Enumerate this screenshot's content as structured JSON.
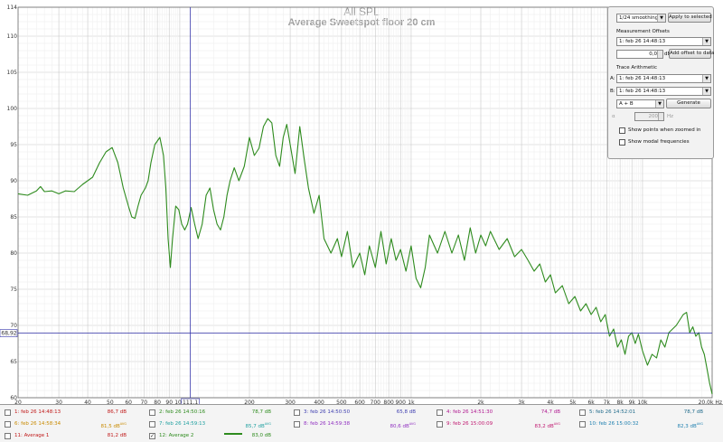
{
  "chart_title": "All SPL",
  "chart_subtitle": "Average Sweetspot floor 20 cm",
  "cursor": {
    "freq_readout": "111,1",
    "level_readout": "68,92"
  },
  "panel": {
    "smoothing": "1/24 smoothing",
    "apply_selected": "Apply to selected",
    "offsets_label": "Measurement Offsets",
    "offset_measurement": "1: feb 26 14:48:13",
    "offset_value": "0,0",
    "offset_unit": "dB",
    "add_offset": "Add offset to data",
    "arith_label": "Trace Arithmetic",
    "a_label": "A:",
    "a_value": "1: feb 26 14:48:13",
    "b_label": "B:",
    "b_value": "1: feb 26 14:48:13",
    "operation": "A + B",
    "generate": "Generate",
    "unit_hz": "Hz",
    "alpha_label": "α",
    "freq_value": "200",
    "show_points": "Show points when zoomed in",
    "show_modal": "Show modal frequencies"
  },
  "legend": [
    {
      "name": "1: feb 26 14:48:13",
      "value": "86,7 dB",
      "avg": "",
      "color": "#c01818",
      "checked": false
    },
    {
      "name": "2: feb 26 14:50:16",
      "value": "78,7 dB",
      "avg": "",
      "color": "#2e8b1e",
      "checked": false
    },
    {
      "name": "3: feb 26 14:50:50",
      "value": "65,8 dB",
      "avg": "",
      "color": "#4040b0",
      "checked": false
    },
    {
      "name": "4: feb 26 14:51:30",
      "value": "74,7 dB",
      "avg": "",
      "color": "#b01890",
      "checked": false
    },
    {
      "name": "5: feb 26 14:52:01",
      "value": "78,7 dB",
      "avg": "",
      "color": "#1f6a8a",
      "checked": false
    },
    {
      "name": "6: feb 26 14:58:34",
      "value": "81,5 dB",
      "avg": "AVG",
      "color": "#c88a00",
      "checked": false
    },
    {
      "name": "7: feb 26 14:59:13",
      "value": "85,7 dB",
      "avg": "AVG",
      "color": "#20a0a0",
      "checked": false
    },
    {
      "name": "8: feb 26 14:59:38",
      "value": "80,6 dB",
      "avg": "AVG",
      "color": "#9030c0",
      "checked": false
    },
    {
      "name": "9: feb 26 15:00:09",
      "value": "83,2 dB",
      "avg": "AVG",
      "color": "#c01870",
      "checked": false
    },
    {
      "name": "10: feb 26 15:00:32",
      "value": "82,3 dB",
      "avg": "AVG",
      "color": "#2080b0",
      "checked": false
    },
    {
      "name": "11: Average 1",
      "value": "81,2 dB",
      "avg": "",
      "color": "#c01818",
      "checked": false
    },
    {
      "name": "12: Average 2",
      "value": "83,0 dB",
      "avg": "",
      "color": "#2e8b1e",
      "checked": true
    }
  ],
  "chart_data": {
    "type": "line",
    "title": "All SPL",
    "subtitle": "Average Sweetspot floor 20 cm",
    "xlabel": "Hz",
    "x_scale": "log",
    "xlim": [
      20,
      20000
    ],
    "ylim": [
      60,
      114
    ],
    "y_ticks": [
      60,
      65,
      70,
      75,
      80,
      85,
      90,
      95,
      100,
      105,
      110,
      114
    ],
    "x_ticks": [
      {
        "v": 20,
        "t": "20"
      },
      {
        "v": 30,
        "t": "30"
      },
      {
        "v": 40,
        "t": "40"
      },
      {
        "v": 50,
        "t": "50"
      },
      {
        "v": 60,
        "t": "60"
      },
      {
        "v": 70,
        "t": "70"
      },
      {
        "v": 80,
        "t": "80"
      },
      {
        "v": 90,
        "t": "90"
      },
      {
        "v": 100,
        "t": "100"
      },
      {
        "v": 200,
        "t": "200"
      },
      {
        "v": 300,
        "t": "300"
      },
      {
        "v": 400,
        "t": "400"
      },
      {
        "v": 500,
        "t": "500"
      },
      {
        "v": 600,
        "t": "600"
      },
      {
        "v": 700,
        "t": "700"
      },
      {
        "v": 800,
        "t": "800"
      },
      {
        "v": 900,
        "t": "900"
      },
      {
        "v": 1000,
        "t": "1k"
      },
      {
        "v": 2000,
        "t": "2k"
      },
      {
        "v": 3000,
        "t": "3k"
      },
      {
        "v": 4000,
        "t": "4k"
      },
      {
        "v": 5000,
        "t": "5k"
      },
      {
        "v": 6000,
        "t": "6k"
      },
      {
        "v": 7000,
        "t": "7k"
      },
      {
        "v": 8000,
        "t": "8k"
      },
      {
        "v": 9000,
        "t": "9k"
      },
      {
        "v": 10000,
        "t": "10k"
      },
      {
        "v": 20000,
        "t": "20.0k Hz"
      }
    ],
    "grid": true,
    "cursor": {
      "x": 111.1,
      "y": 68.92
    },
    "series": [
      {
        "name": "12: Average 2",
        "color": "#2e8b1e",
        "points": [
          [
            20,
            88.2
          ],
          [
            22,
            88.0
          ],
          [
            24,
            88.6
          ],
          [
            25,
            89.2
          ],
          [
            26,
            88.5
          ],
          [
            28,
            88.6
          ],
          [
            30,
            88.2
          ],
          [
            32,
            88.6
          ],
          [
            35,
            88.5
          ],
          [
            38,
            89.5
          ],
          [
            42,
            90.5
          ],
          [
            45,
            92.5
          ],
          [
            48,
            94.0
          ],
          [
            51,
            94.6
          ],
          [
            54,
            92.5
          ],
          [
            57,
            89.0
          ],
          [
            60,
            86.5
          ],
          [
            62,
            85.0
          ],
          [
            64,
            84.8
          ],
          [
            66,
            86.5
          ],
          [
            68,
            88.0
          ],
          [
            71,
            89.0
          ],
          [
            73,
            90.0
          ],
          [
            75,
            92.5
          ],
          [
            78,
            95.0
          ],
          [
            82,
            96.0
          ],
          [
            85,
            93.5
          ],
          [
            87,
            89.0
          ],
          [
            89,
            82.0
          ],
          [
            91,
            78.0
          ],
          [
            93,
            82.0
          ],
          [
            96,
            86.5
          ],
          [
            99,
            86.0
          ],
          [
            102,
            84.0
          ],
          [
            105,
            83.2
          ],
          [
            108,
            84.0
          ],
          [
            112,
            86.3
          ],
          [
            116,
            84.0
          ],
          [
            120,
            82.0
          ],
          [
            125,
            84.0
          ],
          [
            130,
            88.0
          ],
          [
            135,
            89.0
          ],
          [
            140,
            86.0
          ],
          [
            145,
            84.0
          ],
          [
            150,
            83.2
          ],
          [
            155,
            85.0
          ],
          [
            160,
            88.0
          ],
          [
            165,
            90.0
          ],
          [
            172,
            91.8
          ],
          [
            180,
            90.0
          ],
          [
            190,
            92.0
          ],
          [
            200,
            96.0
          ],
          [
            210,
            93.5
          ],
          [
            220,
            94.5
          ],
          [
            230,
            97.5
          ],
          [
            240,
            98.6
          ],
          [
            250,
            98.0
          ],
          [
            260,
            93.5
          ],
          [
            270,
            92.0
          ],
          [
            280,
            96.0
          ],
          [
            290,
            97.8
          ],
          [
            300,
            95.0
          ],
          [
            315,
            91.0
          ],
          [
            330,
            97.5
          ],
          [
            345,
            93.0
          ],
          [
            360,
            89.0
          ],
          [
            380,
            85.5
          ],
          [
            400,
            88.0
          ],
          [
            420,
            82.0
          ],
          [
            450,
            80.0
          ],
          [
            480,
            82.0
          ],
          [
            500,
            79.5
          ],
          [
            530,
            83.0
          ],
          [
            560,
            78.0
          ],
          [
            600,
            80.0
          ],
          [
            630,
            77.0
          ],
          [
            660,
            81.0
          ],
          [
            700,
            78.0
          ],
          [
            740,
            83.0
          ],
          [
            780,
            78.5
          ],
          [
            820,
            82.0
          ],
          [
            860,
            79.0
          ],
          [
            900,
            80.5
          ],
          [
            950,
            77.5
          ],
          [
            1000,
            81.0
          ],
          [
            1050,
            76.5
          ],
          [
            1100,
            75.2
          ],
          [
            1150,
            78.0
          ],
          [
            1200,
            82.5
          ],
          [
            1300,
            80.0
          ],
          [
            1400,
            83.0
          ],
          [
            1500,
            80.0
          ],
          [
            1600,
            82.5
          ],
          [
            1700,
            79.0
          ],
          [
            1800,
            83.5
          ],
          [
            1900,
            80.0
          ],
          [
            2000,
            82.5
          ],
          [
            2100,
            81.0
          ],
          [
            2200,
            83.0
          ],
          [
            2400,
            80.5
          ],
          [
            2600,
            82.0
          ],
          [
            2800,
            79.5
          ],
          [
            3000,
            80.5
          ],
          [
            3200,
            79.0
          ],
          [
            3400,
            77.5
          ],
          [
            3600,
            78.5
          ],
          [
            3800,
            76.0
          ],
          [
            4000,
            77.0
          ],
          [
            4200,
            74.5
          ],
          [
            4500,
            75.5
          ],
          [
            4800,
            73.0
          ],
          [
            5100,
            74.0
          ],
          [
            5400,
            72.0
          ],
          [
            5700,
            73.0
          ],
          [
            6000,
            71.5
          ],
          [
            6300,
            72.5
          ],
          [
            6600,
            70.5
          ],
          [
            6900,
            71.5
          ],
          [
            7200,
            68.5
          ],
          [
            7500,
            69.5
          ],
          [
            7800,
            67.0
          ],
          [
            8100,
            68.0
          ],
          [
            8400,
            66.0
          ],
          [
            8700,
            68.5
          ],
          [
            9000,
            69.0
          ],
          [
            9300,
            67.5
          ],
          [
            9600,
            68.8
          ],
          [
            10000,
            66.5
          ],
          [
            10500,
            64.5
          ],
          [
            11000,
            66.0
          ],
          [
            11500,
            65.5
          ],
          [
            12000,
            68.0
          ],
          [
            12500,
            67.0
          ],
          [
            13000,
            69.0
          ],
          [
            14000,
            70.0
          ],
          [
            15000,
            71.5
          ],
          [
            15500,
            71.8
          ],
          [
            16000,
            69.0
          ],
          [
            16500,
            69.8
          ],
          [
            17000,
            68.5
          ],
          [
            17500,
            69.0
          ],
          [
            18000,
            67.0
          ],
          [
            18500,
            66.0
          ],
          [
            19000,
            64.0
          ],
          [
            19500,
            62.0
          ],
          [
            20000,
            60.5
          ]
        ]
      }
    ]
  }
}
